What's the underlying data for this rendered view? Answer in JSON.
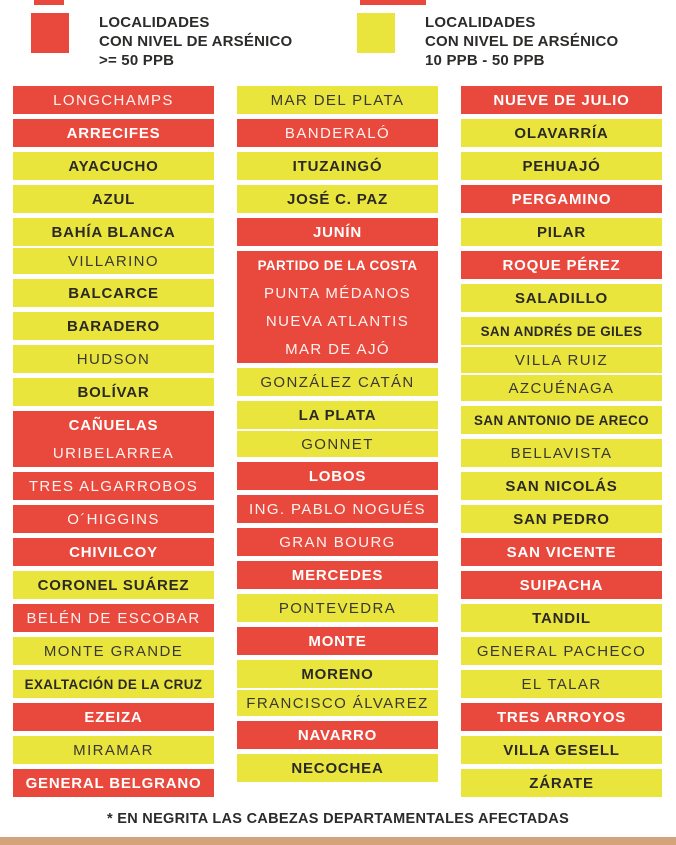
{
  "colors": {
    "red": "#e8493c",
    "yellow": "#eae53c",
    "dark_text": "#2d2b29",
    "bottom_bar": "#d3a47c"
  },
  "legend": [
    {
      "swatch": "red",
      "lines": [
        "LOCALIDADES",
        "CON NIVEL DE ARSÉNICO",
        ">= 50 PPB"
      ]
    },
    {
      "swatch": "yellow",
      "lines": [
        "LOCALIDADES",
        "CON NIVEL DE ARSÉNICO",
        "10 PPB - 50 PPB"
      ]
    }
  ],
  "footer": {
    "note": "* EN NEGRITA LAS CABEZAS DEPARTAMENTALES AFECTADAS"
  },
  "columns": [
    {
      "blocks": [
        {
          "color": "red",
          "divider": false,
          "rows": [
            {
              "text": "LONGCHAMPS",
              "bold": false
            }
          ]
        },
        {
          "color": "red",
          "divider": false,
          "rows": [
            {
              "text": "ARRECIFES",
              "bold": true
            }
          ]
        },
        {
          "color": "yellow",
          "divider": false,
          "rows": [
            {
              "text": "AYACUCHO",
              "bold": true
            }
          ]
        },
        {
          "color": "yellow",
          "divider": false,
          "rows": [
            {
              "text": "AZUL",
              "bold": true
            }
          ]
        },
        {
          "color": "yellow",
          "divider": true,
          "rows": [
            {
              "text": "BAHÍA BLANCA",
              "bold": true
            },
            {
              "text": "VILLARINO",
              "bold": false
            }
          ]
        },
        {
          "color": "yellow",
          "divider": false,
          "rows": [
            {
              "text": "BALCARCE",
              "bold": true
            }
          ]
        },
        {
          "color": "yellow",
          "divider": false,
          "rows": [
            {
              "text": "BARADERO",
              "bold": true
            }
          ]
        },
        {
          "color": "yellow",
          "divider": false,
          "rows": [
            {
              "text": "HUDSON",
              "bold": false
            }
          ]
        },
        {
          "color": "yellow",
          "divider": false,
          "rows": [
            {
              "text": "BOLÍVAR",
              "bold": true
            }
          ]
        },
        {
          "color": "red",
          "divider": false,
          "rows": [
            {
              "text": "CAÑUELAS",
              "bold": true
            },
            {
              "text": "URIBELARREA",
              "bold": false
            }
          ]
        },
        {
          "color": "red",
          "divider": false,
          "rows": [
            {
              "text": "TRES ALGARROBOS",
              "bold": false
            }
          ]
        },
        {
          "color": "red",
          "divider": false,
          "rows": [
            {
              "text": "O´HIGGINS",
              "bold": false
            }
          ]
        },
        {
          "color": "red",
          "divider": false,
          "rows": [
            {
              "text": "CHIVILCOY",
              "bold": true
            }
          ]
        },
        {
          "color": "yellow",
          "divider": false,
          "rows": [
            {
              "text": "CORONEL SUÁREZ",
              "bold": true
            }
          ]
        },
        {
          "color": "red",
          "divider": false,
          "rows": [
            {
              "text": "BELÉN DE ESCOBAR",
              "bold": false
            }
          ]
        },
        {
          "color": "yellow",
          "divider": false,
          "rows": [
            {
              "text": "MONTE GRANDE",
              "bold": false
            }
          ]
        },
        {
          "color": "yellow",
          "divider": false,
          "rows": [
            {
              "text": "EXALTACIÓN DE LA CRUZ",
              "bold": true
            }
          ]
        },
        {
          "color": "red",
          "divider": false,
          "rows": [
            {
              "text": "EZEIZA",
              "bold": true
            }
          ]
        },
        {
          "color": "yellow",
          "divider": false,
          "rows": [
            {
              "text": "MIRAMAR",
              "bold": false
            }
          ]
        },
        {
          "color": "red",
          "divider": false,
          "rows": [
            {
              "text": "GENERAL BELGRANO",
              "bold": true
            }
          ]
        }
      ]
    },
    {
      "blocks": [
        {
          "color": "yellow",
          "divider": false,
          "rows": [
            {
              "text": "MAR DEL PLATA",
              "bold": false
            }
          ]
        },
        {
          "color": "red",
          "divider": false,
          "rows": [
            {
              "text": "BANDERALÓ",
              "bold": false
            }
          ]
        },
        {
          "color": "yellow",
          "divider": false,
          "rows": [
            {
              "text": "ITUZAINGÓ",
              "bold": true
            }
          ]
        },
        {
          "color": "yellow",
          "divider": false,
          "rows": [
            {
              "text": "JOSÉ C. PAZ",
              "bold": true
            }
          ]
        },
        {
          "color": "red",
          "divider": false,
          "rows": [
            {
              "text": "JUNÍN",
              "bold": true
            }
          ]
        },
        {
          "color": "red",
          "divider": false,
          "rows": [
            {
              "text": "PARTIDO DE LA COSTA",
              "bold": true
            },
            {
              "text": "PUNTA MÉDANOS",
              "bold": false
            },
            {
              "text": "NUEVA ATLANTIS",
              "bold": false
            },
            {
              "text": "MAR DE AJÓ",
              "bold": false
            }
          ]
        },
        {
          "color": "yellow",
          "divider": false,
          "rows": [
            {
              "text": "GONZÁLEZ CATÁN",
              "bold": false
            }
          ]
        },
        {
          "color": "yellow",
          "divider": true,
          "rows": [
            {
              "text": "LA PLATA",
              "bold": true
            },
            {
              "text": "GONNET",
              "bold": false
            }
          ]
        },
        {
          "color": "red",
          "divider": false,
          "rows": [
            {
              "text": "LOBOS",
              "bold": true
            }
          ]
        },
        {
          "color": "red",
          "divider": false,
          "rows": [
            {
              "text": "ING. PABLO NOGUÉS",
              "bold": false
            }
          ]
        },
        {
          "color": "red",
          "divider": false,
          "rows": [
            {
              "text": "GRAN BOURG",
              "bold": false
            }
          ]
        },
        {
          "color": "red",
          "divider": false,
          "rows": [
            {
              "text": "MERCEDES",
              "bold": true
            }
          ]
        },
        {
          "color": "yellow",
          "divider": false,
          "rows": [
            {
              "text": "PONTEVEDRA",
              "bold": false
            }
          ]
        },
        {
          "color": "red",
          "divider": false,
          "rows": [
            {
              "text": "MONTE",
              "bold": true
            }
          ]
        },
        {
          "color": "yellow",
          "divider": true,
          "rows": [
            {
              "text": "MORENO",
              "bold": true
            },
            {
              "text": "FRANCISCO ÁLVAREZ",
              "bold": false
            }
          ]
        },
        {
          "color": "red",
          "divider": false,
          "rows": [
            {
              "text": "NAVARRO",
              "bold": true
            }
          ]
        },
        {
          "color": "yellow",
          "divider": false,
          "rows": [
            {
              "text": "NECOCHEA",
              "bold": true
            }
          ]
        }
      ]
    },
    {
      "blocks": [
        {
          "color": "red",
          "divider": false,
          "rows": [
            {
              "text": "NUEVE DE JULIO",
              "bold": true
            }
          ]
        },
        {
          "color": "yellow",
          "divider": false,
          "rows": [
            {
              "text": "OLAVARRÍA",
              "bold": true
            }
          ]
        },
        {
          "color": "yellow",
          "divider": false,
          "rows": [
            {
              "text": "PEHUAJÓ",
              "bold": true
            }
          ]
        },
        {
          "color": "red",
          "divider": false,
          "rows": [
            {
              "text": "PERGAMINO",
              "bold": true
            }
          ]
        },
        {
          "color": "yellow",
          "divider": false,
          "rows": [
            {
              "text": "PILAR",
              "bold": true
            }
          ]
        },
        {
          "color": "red",
          "divider": false,
          "rows": [
            {
              "text": "ROQUE PÉREZ",
              "bold": true
            }
          ]
        },
        {
          "color": "yellow",
          "divider": false,
          "rows": [
            {
              "text": "SALADILLO",
              "bold": true
            }
          ]
        },
        {
          "color": "yellow",
          "divider": true,
          "rows": [
            {
              "text": "SAN ANDRÉS DE GILES",
              "bold": true
            },
            {
              "text": "VILLA RUIZ",
              "bold": false
            },
            {
              "text": "AZCUÉNAGA",
              "bold": false
            }
          ]
        },
        {
          "color": "yellow",
          "divider": false,
          "rows": [
            {
              "text": "SAN ANTONIO DE ARECO",
              "bold": true
            }
          ]
        },
        {
          "color": "yellow",
          "divider": false,
          "rows": [
            {
              "text": "BELLAVISTA",
              "bold": false
            }
          ]
        },
        {
          "color": "yellow",
          "divider": false,
          "rows": [
            {
              "text": "SAN NICOLÁS",
              "bold": true
            }
          ]
        },
        {
          "color": "yellow",
          "divider": false,
          "rows": [
            {
              "text": "SAN PEDRO",
              "bold": true
            }
          ]
        },
        {
          "color": "red",
          "divider": false,
          "rows": [
            {
              "text": "SAN VICENTE",
              "bold": true
            }
          ]
        },
        {
          "color": "red",
          "divider": false,
          "rows": [
            {
              "text": "SUIPACHA",
              "bold": true
            }
          ]
        },
        {
          "color": "yellow",
          "divider": false,
          "rows": [
            {
              "text": "TANDIL",
              "bold": true
            }
          ]
        },
        {
          "color": "yellow",
          "divider": false,
          "rows": [
            {
              "text": "GENERAL PACHECO",
              "bold": false
            }
          ]
        },
        {
          "color": "yellow",
          "divider": false,
          "rows": [
            {
              "text": "EL TALAR",
              "bold": false
            }
          ]
        },
        {
          "color": "red",
          "divider": false,
          "rows": [
            {
              "text": "TRES ARROYOS",
              "bold": true
            }
          ]
        },
        {
          "color": "yellow",
          "divider": false,
          "rows": [
            {
              "text": "VILLA GESELL",
              "bold": true
            }
          ]
        },
        {
          "color": "yellow",
          "divider": false,
          "rows": [
            {
              "text": "ZÁRATE",
              "bold": true
            }
          ]
        }
      ]
    }
  ]
}
